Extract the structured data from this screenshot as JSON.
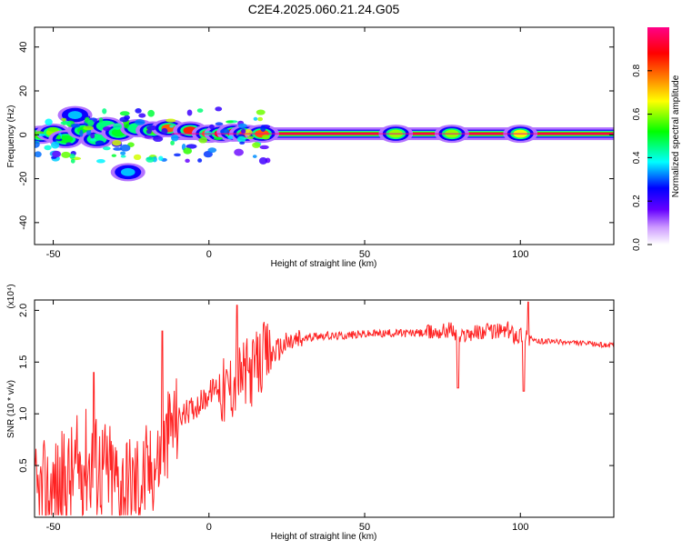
{
  "title": "C2E4.2025.060.21.24.G05",
  "chart_data": [
    {
      "type": "heatmap",
      "name": "spectrogram",
      "xlabel": "Height of straight line (km)",
      "ylabel": "Frequency (Hz)",
      "xlim": [
        -56,
        130
      ],
      "ylim": [
        -50,
        49
      ],
      "xticks": [
        -50,
        0,
        50,
        100
      ],
      "yticks": [
        -40,
        -20,
        0,
        20,
        40
      ],
      "colorbar": {
        "label": "Normalized spectral amplitude",
        "range": [
          0,
          1
        ],
        "ticks": [
          "0.0",
          "0.2",
          "0.4",
          "0.6",
          "0.8"
        ],
        "tick_values": [
          0,
          0.2,
          0.4,
          0.6,
          0.8
        ],
        "colormap": [
          "#ffffff",
          "#6600ff",
          "#0000ff",
          "#00ffff",
          "#00ff00",
          "#ffff00",
          "#ff8800",
          "#ff0000",
          "#ff0088"
        ]
      },
      "blobs": [
        {
          "x": -54,
          "f": 0,
          "amp": 0.55
        },
        {
          "x": -50,
          "f": 1,
          "amp": 0.6
        },
        {
          "x": -46,
          "f": -2,
          "amp": 0.5
        },
        {
          "x": -43,
          "f": 9,
          "amp": 0.35
        },
        {
          "x": -40,
          "f": 2,
          "amp": 0.5
        },
        {
          "x": -36,
          "f": -2,
          "amp": 0.45
        },
        {
          "x": -33,
          "f": 4,
          "amp": 0.45
        },
        {
          "x": -29,
          "f": 1,
          "amp": 0.5
        },
        {
          "x": -26,
          "f": -17,
          "amp": 0.35
        },
        {
          "x": -23,
          "f": 3,
          "amp": 0.45
        },
        {
          "x": -18,
          "f": 2,
          "amp": 0.55
        },
        {
          "x": -13,
          "f": 3,
          "amp": 0.8
        },
        {
          "x": -6,
          "f": 2,
          "amp": 0.85
        },
        {
          "x": 0,
          "f": 0.5,
          "amp": 0.8
        },
        {
          "x": 4,
          "f": 0.5,
          "amp": 0.9
        },
        {
          "x": 8,
          "f": 1,
          "amp": 0.85
        },
        {
          "x": 12,
          "f": 0.5,
          "amp": 0.8
        },
        {
          "x": 17,
          "f": 0.5,
          "amp": 0.8
        },
        {
          "x": 60,
          "f": 0.5,
          "amp": 0.6
        },
        {
          "x": 78,
          "f": 0.5,
          "amp": 0.6
        },
        {
          "x": 100,
          "f": 0.5,
          "amp": 0.65
        }
      ],
      "band": {
        "f": 0.5,
        "x_start": -12,
        "x_end": 130,
        "amp": 0.9
      }
    },
    {
      "type": "line",
      "name": "snr",
      "xlabel": "Height of straight line (km)",
      "ylabel": "SNR (10 * v/v)",
      "scale_label": "(x10⁴)",
      "xlim": [
        -56,
        130
      ],
      "ylim": [
        0,
        2.1
      ],
      "xticks": [
        -50,
        0,
        50,
        100
      ],
      "yticks": [
        0.5,
        1.0,
        1.5,
        2.0
      ],
      "ytick_labels": [
        "0.5",
        "1.0",
        "1.5",
        "2.0"
      ],
      "color": "#ff2222",
      "series": [
        {
          "name": "SNR",
          "x": [
            -56,
            -50,
            -45,
            -40,
            -35,
            -30,
            -25,
            -20,
            -15,
            -12,
            -8,
            -4,
            -1,
            0,
            3,
            5,
            8,
            10,
            13,
            15,
            18,
            20,
            25,
            30,
            35,
            40,
            50,
            60,
            70,
            75,
            78,
            80,
            83,
            90,
            96,
            100,
            102,
            103,
            105,
            110,
            120,
            130
          ],
          "y": [
            0.15,
            0.25,
            0.35,
            0.55,
            0.5,
            0.35,
            0.3,
            0.4,
            0.6,
            0.9,
            1.0,
            1.08,
            1.15,
            1.2,
            1.28,
            1.2,
            1.3,
            1.35,
            1.4,
            1.45,
            1.55,
            1.58,
            1.68,
            1.72,
            1.76,
            1.75,
            1.77,
            1.78,
            1.78,
            1.8,
            1.82,
            1.72,
            1.78,
            1.8,
            1.8,
            1.76,
            1.8,
            1.72,
            1.7,
            1.7,
            1.68,
            1.66
          ]
        }
      ]
    }
  ]
}
